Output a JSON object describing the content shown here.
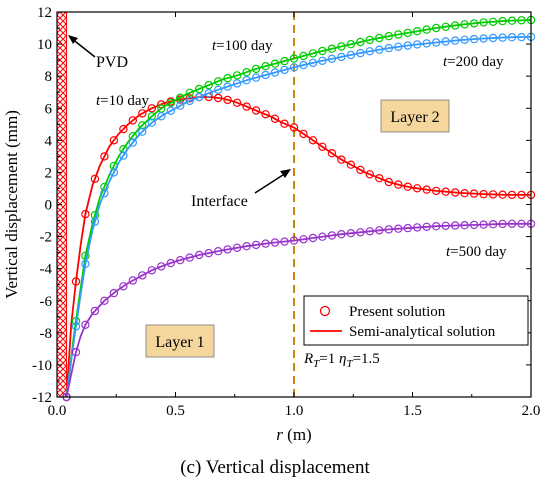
{
  "caption": "(c) Vertical displacement",
  "chart_data": {
    "type": "line",
    "xlabel": "r (m)",
    "ylabel": "Vertical displacement (mm)",
    "xlim": [
      0.0,
      2.0
    ],
    "ylim": [
      -12,
      12
    ],
    "x_ticks": [
      0.0,
      0.5,
      1.0,
      1.5,
      2.0
    ],
    "x_tick_labels": [
      "0.0",
      "0.5",
      "1.0",
      "1.5",
      "2.0"
    ],
    "y_ticks": [
      -12,
      -10,
      -8,
      -6,
      -4,
      -2,
      0,
      2,
      4,
      6,
      8,
      10,
      12
    ],
    "y_tick_labels": [
      "-12",
      "-10",
      "-8",
      "-6",
      "-4",
      "-2",
      "0",
      "2",
      "4",
      "6",
      "8",
      "10",
      "12"
    ],
    "grid": false,
    "pvd_region": [
      0.0,
      0.04
    ],
    "interface_r": 1.0,
    "series": [
      {
        "label": "t=10 day",
        "color": "#ff0000",
        "points": [
          [
            0.04,
            -12
          ],
          [
            0.06,
            -7.5
          ],
          [
            0.08,
            -4.8
          ],
          [
            0.1,
            -2.5
          ],
          [
            0.12,
            -0.6
          ],
          [
            0.15,
            1.2
          ],
          [
            0.18,
            2.4
          ],
          [
            0.22,
            3.6
          ],
          [
            0.26,
            4.4
          ],
          [
            0.3,
            5.0
          ],
          [
            0.35,
            5.6
          ],
          [
            0.4,
            6.0
          ],
          [
            0.45,
            6.3
          ],
          [
            0.5,
            6.5
          ],
          [
            0.55,
            6.6
          ],
          [
            0.6,
            6.7
          ],
          [
            0.65,
            6.7
          ],
          [
            0.7,
            6.6
          ],
          [
            0.75,
            6.4
          ],
          [
            0.8,
            6.1
          ],
          [
            0.85,
            5.8
          ],
          [
            0.9,
            5.5
          ],
          [
            0.95,
            5.1
          ],
          [
            1.0,
            4.8
          ],
          [
            1.05,
            4.3
          ],
          [
            1.1,
            3.8
          ],
          [
            1.15,
            3.3
          ],
          [
            1.2,
            2.8
          ],
          [
            1.25,
            2.4
          ],
          [
            1.3,
            2.0
          ],
          [
            1.35,
            1.7
          ],
          [
            1.4,
            1.4
          ],
          [
            1.45,
            1.2
          ],
          [
            1.5,
            1.05
          ],
          [
            1.6,
            0.85
          ],
          [
            1.7,
            0.72
          ],
          [
            1.8,
            0.65
          ],
          [
            1.9,
            0.6
          ],
          [
            2.0,
            0.6
          ]
        ]
      },
      {
        "label": "t=100 day",
        "color": "#00cc00",
        "points": [
          [
            0.04,
            -12
          ],
          [
            0.07,
            -8.3
          ],
          [
            0.1,
            -5.2
          ],
          [
            0.12,
            -3.2
          ],
          [
            0.15,
            -1.2
          ],
          [
            0.18,
            0.4
          ],
          [
            0.22,
            1.8
          ],
          [
            0.26,
            3.0
          ],
          [
            0.3,
            3.9
          ],
          [
            0.35,
            4.8
          ],
          [
            0.4,
            5.5
          ],
          [
            0.45,
            6.1
          ],
          [
            0.5,
            6.5
          ],
          [
            0.55,
            6.9
          ],
          [
            0.6,
            7.2
          ],
          [
            0.65,
            7.5
          ],
          [
            0.7,
            7.8
          ],
          [
            0.75,
            8.0
          ],
          [
            0.8,
            8.25
          ],
          [
            0.85,
            8.5
          ],
          [
            0.9,
            8.7
          ],
          [
            0.95,
            8.9
          ],
          [
            1.0,
            9.1
          ],
          [
            1.1,
            9.5
          ],
          [
            1.2,
            9.85
          ],
          [
            1.3,
            10.2
          ],
          [
            1.4,
            10.5
          ],
          [
            1.5,
            10.75
          ],
          [
            1.6,
            11.0
          ],
          [
            1.7,
            11.2
          ],
          [
            1.8,
            11.35
          ],
          [
            1.9,
            11.45
          ],
          [
            2.0,
            11.5
          ]
        ]
      },
      {
        "label": "t=200 day",
        "color": "#3399ff",
        "points": [
          [
            0.04,
            -12
          ],
          [
            0.07,
            -8.6
          ],
          [
            0.1,
            -5.6
          ],
          [
            0.12,
            -3.7
          ],
          [
            0.15,
            -1.6
          ],
          [
            0.18,
            0.0
          ],
          [
            0.22,
            1.4
          ],
          [
            0.26,
            2.6
          ],
          [
            0.3,
            3.5
          ],
          [
            0.35,
            4.4
          ],
          [
            0.4,
            5.1
          ],
          [
            0.45,
            5.6
          ],
          [
            0.5,
            6.0
          ],
          [
            0.55,
            6.4
          ],
          [
            0.6,
            6.7
          ],
          [
            0.65,
            7.0
          ],
          [
            0.7,
            7.25
          ],
          [
            0.75,
            7.5
          ],
          [
            0.8,
            7.75
          ],
          [
            0.85,
            7.95
          ],
          [
            0.9,
            8.15
          ],
          [
            0.95,
            8.35
          ],
          [
            1.0,
            8.55
          ],
          [
            1.1,
            8.9
          ],
          [
            1.2,
            9.2
          ],
          [
            1.3,
            9.5
          ],
          [
            1.4,
            9.75
          ],
          [
            1.5,
            9.95
          ],
          [
            1.6,
            10.1
          ],
          [
            1.7,
            10.25
          ],
          [
            1.8,
            10.35
          ],
          [
            1.9,
            10.42
          ],
          [
            2.0,
            10.45
          ]
        ]
      },
      {
        "label": "t=500 day",
        "color": "#9933cc",
        "points": [
          [
            0.04,
            -12
          ],
          [
            0.06,
            -10.6
          ],
          [
            0.08,
            -9.2
          ],
          [
            0.1,
            -8.2
          ],
          [
            0.12,
            -7.5
          ],
          [
            0.15,
            -6.8
          ],
          [
            0.2,
            -6.0
          ],
          [
            0.25,
            -5.4
          ],
          [
            0.3,
            -4.9
          ],
          [
            0.35,
            -4.5
          ],
          [
            0.4,
            -4.1
          ],
          [
            0.45,
            -3.8
          ],
          [
            0.5,
            -3.55
          ],
          [
            0.6,
            -3.15
          ],
          [
            0.7,
            -2.85
          ],
          [
            0.8,
            -2.6
          ],
          [
            0.9,
            -2.4
          ],
          [
            1.0,
            -2.25
          ],
          [
            1.1,
            -2.05
          ],
          [
            1.2,
            -1.85
          ],
          [
            1.3,
            -1.7
          ],
          [
            1.4,
            -1.55
          ],
          [
            1.5,
            -1.45
          ],
          [
            1.6,
            -1.35
          ],
          [
            1.7,
            -1.3
          ],
          [
            1.8,
            -1.25
          ],
          [
            1.9,
            -1.2
          ],
          [
            2.0,
            -1.2
          ]
        ]
      }
    ],
    "annotations": {
      "pvd": "PVD",
      "t10": "t=10 day",
      "t100": "t=100 day",
      "t200": "t=200 day",
      "t500": "t=500 day",
      "interface": "Interface",
      "layer1": "Layer 1",
      "layer2": "Layer 2",
      "params": "RT=1   ηT=1.5"
    },
    "legend": {
      "placement": "lower-right",
      "present": "Present solution",
      "semi": "Semi-analytical solution"
    },
    "colors": {
      "layer_box": "#f5d79e",
      "interface_line": "#c8860a",
      "pvd": "#ff0000"
    }
  }
}
